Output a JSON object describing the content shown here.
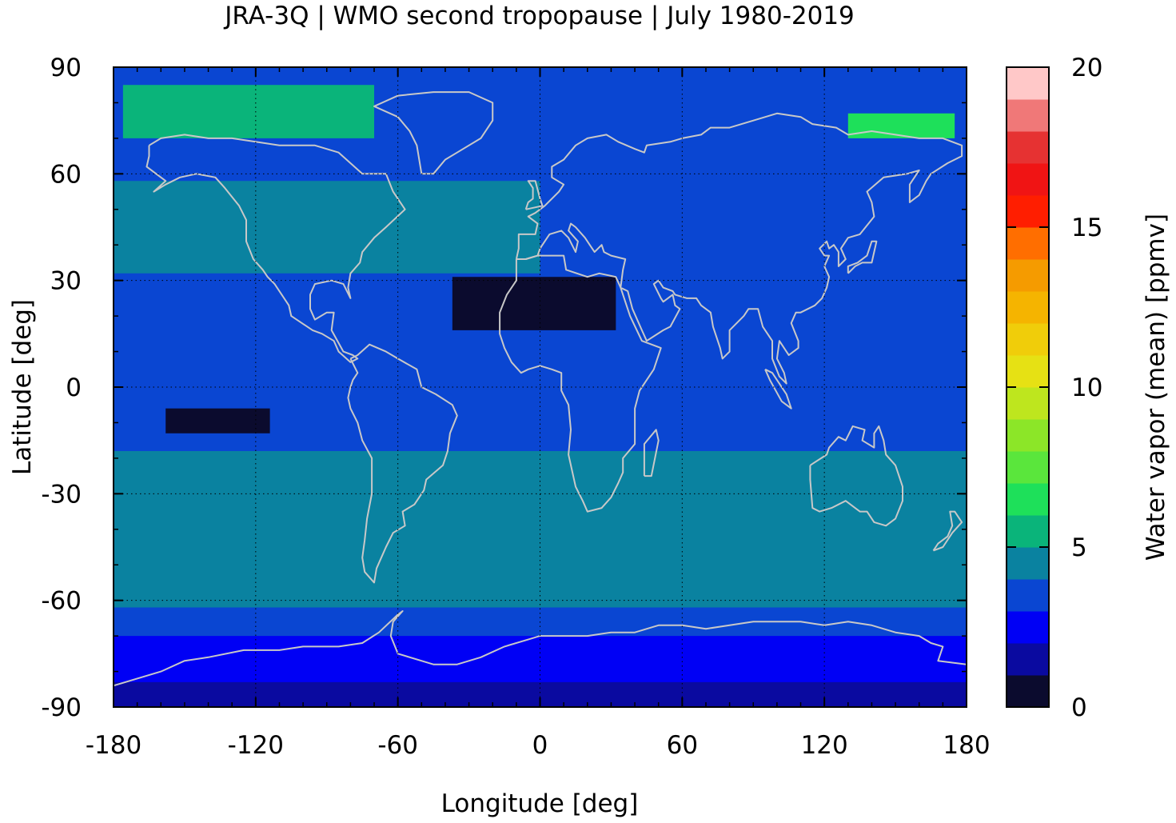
{
  "title": "JRA-3Q | WMO second tropopause | July 1980-2019",
  "map": {
    "xlabel": "Longitude [deg]",
    "ylabel": "Latitude [deg]",
    "xlim": [
      -180,
      180
    ],
    "ylim": [
      -90,
      90
    ],
    "xticks": [
      -180,
      -120,
      -60,
      0,
      60,
      120,
      180
    ],
    "yticks": [
      90,
      60,
      30,
      0,
      -30,
      -60,
      -90
    ],
    "grid": true,
    "coastline_color": "#c8c8c8"
  },
  "colorbar": {
    "label": "Water vapor (mean) [ppmv]",
    "ticks": [
      0,
      5,
      10,
      15,
      20
    ],
    "range": [
      0,
      20
    ],
    "bins": [
      {
        "min": 0,
        "max": 1,
        "color": "#0b0b2e"
      },
      {
        "min": 1,
        "max": 2,
        "color": "#0a0aa0"
      },
      {
        "min": 2,
        "max": 3,
        "color": "#0000f5"
      },
      {
        "min": 3,
        "max": 4,
        "color": "#0a46d2"
      },
      {
        "min": 4,
        "max": 5,
        "color": "#0a82a0"
      },
      {
        "min": 5,
        "max": 6,
        "color": "#0ab47a"
      },
      {
        "min": 6,
        "max": 7,
        "color": "#1ee05a"
      },
      {
        "min": 7,
        "max": 8,
        "color": "#5ae63c"
      },
      {
        "min": 8,
        "max": 9,
        "color": "#8ce628"
      },
      {
        "min": 9,
        "max": 10,
        "color": "#bee61e"
      },
      {
        "min": 10,
        "max": 11,
        "color": "#e6e114"
      },
      {
        "min": 11,
        "max": 12,
        "color": "#f0cd0a"
      },
      {
        "min": 12,
        "max": 13,
        "color": "#f5b400"
      },
      {
        "min": 13,
        "max": 14,
        "color": "#f59b00"
      },
      {
        "min": 14,
        "max": 15,
        "color": "#ff6e00"
      },
      {
        "min": 15,
        "max": 16,
        "color": "#ff1e00"
      },
      {
        "min": 16,
        "max": 17,
        "color": "#f01414"
      },
      {
        "min": 17,
        "max": 18,
        "color": "#e63232"
      },
      {
        "min": 18,
        "max": 19,
        "color": "#f07878"
      },
      {
        "min": 19,
        "max": 20,
        "color": "#ffc8c8"
      }
    ]
  },
  "field": {
    "background_color": "#0a46d2",
    "regions": [
      {
        "name": "tropical-band",
        "color": "#0a46d2",
        "lon": [
          -180,
          180
        ],
        "lat": [
          -25,
          45
        ]
      },
      {
        "name": "nh-midlat-band",
        "color": "#0a82a0",
        "lon": [
          -180,
          0
        ],
        "lat": [
          32,
          58
        ]
      },
      {
        "name": "sh-midlat-band",
        "color": "#0a82a0",
        "lon": [
          -180,
          180
        ],
        "lat": [
          -62,
          -18
        ]
      },
      {
        "name": "sh-subpolar-band",
        "color": "#0a46d2",
        "lon": [
          -180,
          180
        ],
        "lat": [
          -72,
          -62
        ]
      },
      {
        "name": "antarctic-band",
        "color": "#0000f5",
        "lon": [
          -180,
          180
        ],
        "lat": [
          -86,
          -70
        ]
      },
      {
        "name": "south-pole-band",
        "color": "#0a0aa0",
        "lon": [
          -180,
          180
        ],
        "lat": [
          -90,
          -83
        ]
      },
      {
        "name": "sahara-dry-patch",
        "color": "#0b0b2e",
        "lon": [
          -37,
          32
        ],
        "lat": [
          16,
          31
        ]
      },
      {
        "name": "pacific-dry-patch",
        "color": "#0b0b2e",
        "lon": [
          -158,
          -114
        ],
        "lat": [
          -13,
          -6
        ]
      },
      {
        "name": "arctic-moist-patch",
        "color": "#0ab47a",
        "lon": [
          -176,
          -70
        ],
        "lat": [
          70,
          85
        ]
      },
      {
        "name": "arctic-moist-patch-2",
        "color": "#1ee05a",
        "lon": [
          130,
          175
        ],
        "lat": [
          70,
          77
        ]
      }
    ]
  }
}
